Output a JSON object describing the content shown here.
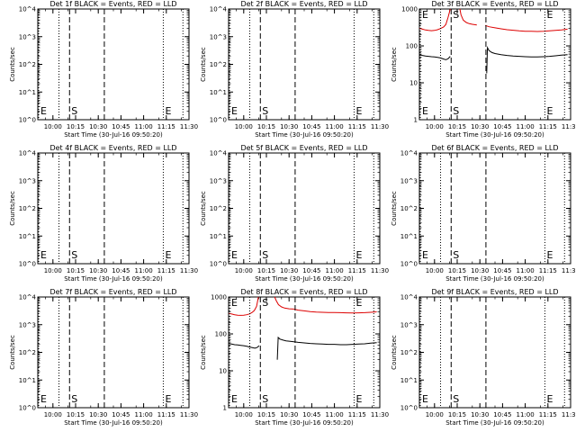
{
  "page": {
    "colors": {
      "background": "#ffffff",
      "events": "#000000",
      "lld": "#dd0000"
    }
  },
  "chart_data": [
    {
      "type": "line",
      "title": "Det 1f BLACK = Events, RED = LLD",
      "xlabel": "Start Time (30-Jul-16 09:50:20)",
      "ylabel": "Counts/sec",
      "xlim": [
        "09:50",
        "11:30"
      ],
      "x_ticks": [
        "10:00",
        "10:15",
        "10:30",
        "10:45",
        "11:00",
        "11:15",
        "11:30"
      ],
      "ylim": [
        1,
        10000
      ],
      "y_scale": "log",
      "y_ticks": [
        "10^0",
        "10^1",
        "10^2",
        "10^3",
        "10^4"
      ],
      "markers": [
        {
          "time": "09:50",
          "style": "dotted",
          "label": "E"
        },
        {
          "time": "10:04",
          "style": "dotted",
          "label": ""
        },
        {
          "time": "10:11",
          "style": "dashed",
          "label": "S"
        },
        {
          "time": "10:34",
          "style": "dashed",
          "label": ""
        },
        {
          "time": "11:13",
          "style": "dotted",
          "label": "E"
        },
        {
          "time": "11:26",
          "style": "dotted",
          "label": ""
        }
      ],
      "series": []
    },
    {
      "type": "line",
      "title": "Det 2f BLACK = Events, RED = LLD",
      "xlabel": "Start Time (30-Jul-16 09:50:20)",
      "ylabel": "Counts/sec",
      "xlim": [
        "09:50",
        "11:30"
      ],
      "x_ticks": [
        "10:00",
        "10:15",
        "10:30",
        "10:45",
        "11:00",
        "11:15",
        "11:30"
      ],
      "ylim": [
        1,
        10000
      ],
      "y_scale": "log",
      "y_ticks": [
        "10^0",
        "10^1",
        "10^2",
        "10^3",
        "10^4"
      ],
      "markers": [
        {
          "time": "09:50",
          "style": "dotted",
          "label": "E"
        },
        {
          "time": "10:04",
          "style": "dotted",
          "label": ""
        },
        {
          "time": "10:11",
          "style": "dashed",
          "label": "S"
        },
        {
          "time": "10:34",
          "style": "dashed",
          "label": ""
        },
        {
          "time": "11:13",
          "style": "dotted",
          "label": "E"
        },
        {
          "time": "11:26",
          "style": "dotted",
          "label": ""
        }
      ],
      "series": []
    },
    {
      "type": "line",
      "title": "Det 3f BLACK = Events, RED = LLD",
      "xlabel": "Start Time (30-Jul-16 09:50:20)",
      "ylabel": "Counts/sec",
      "xlim": [
        "09:50",
        "11:30"
      ],
      "x_ticks": [
        "10:00",
        "10:15",
        "10:30",
        "10:45",
        "11:00",
        "11:15",
        "11:30"
      ],
      "ylim": [
        1,
        1000
      ],
      "y_scale": "log",
      "y_ticks": [
        "1",
        "10",
        "100",
        "1000"
      ],
      "markers": [
        {
          "time": "09:50",
          "style": "dotted",
          "label": "E"
        },
        {
          "time": "10:04",
          "style": "dotted",
          "label": ""
        },
        {
          "time": "10:11",
          "style": "dashed",
          "label": "S"
        },
        {
          "time": "10:34",
          "style": "dashed",
          "label": ""
        },
        {
          "time": "11:13",
          "style": "dotted",
          "label": "E"
        },
        {
          "time": "11:26",
          "style": "dotted",
          "label": ""
        }
      ],
      "series": [
        {
          "color": "#dd0000",
          "segments": [
            {
              "x": [
                0,
                2,
                4,
                6,
                8,
                10,
                12,
                14,
                16,
                17.5,
                19,
                20.4
              ],
              "y": [
                300,
                285,
                270,
                262,
                258,
                262,
                275,
                295,
                325,
                380,
                600,
                1000
              ]
            },
            {
              "x": [
                26.8,
                27.5,
                29,
                31,
                33,
                35,
                38
              ],
              "y": [
                1000,
                700,
                500,
                430,
                400,
                385,
                370
              ]
            },
            {
              "x": [
                43.5,
                46,
                50,
                54,
                58,
                62,
                66,
                70,
                74,
                78,
                82,
                86,
                90,
                94,
                98
              ],
              "y": [
                360,
                330,
                310,
                290,
                275,
                265,
                255,
                250,
                248,
                246,
                248,
                255,
                262,
                272,
                285
              ]
            }
          ]
        },
        {
          "color": "#000000",
          "segments": [
            {
              "x": [
                0,
                2,
                4,
                6,
                8,
                10,
                12,
                14,
                16,
                17.5,
                19,
                20.4
              ],
              "y": [
                58,
                55,
                53,
                52,
                51,
                50,
                49,
                47,
                44,
                42,
                45,
                52
              ]
            },
            {
              "x": [
                44.5,
                45,
                46,
                48,
                50,
                54,
                58,
                62,
                66,
                70,
                74,
                78,
                82,
                86,
                90,
                94,
                98
              ],
              "y": [
                18,
                90,
                75,
                66,
                62,
                58,
                55,
                53,
                52,
                51,
                50,
                50,
                51,
                52,
                54,
                56,
                58
              ]
            }
          ]
        }
      ]
    },
    {
      "type": "line",
      "title": "Det 4f BLACK = Events, RED = LLD",
      "xlabel": "Start Time (30-Jul-16 09:50:20)",
      "ylabel": "Counts/sec",
      "xlim": [
        "09:50",
        "11:30"
      ],
      "x_ticks": [
        "10:00",
        "10:15",
        "10:30",
        "10:45",
        "11:00",
        "11:15",
        "11:30"
      ],
      "ylim": [
        1,
        10000
      ],
      "y_scale": "log",
      "y_ticks": [
        "10^0",
        "10^1",
        "10^2",
        "10^3",
        "10^4"
      ],
      "markers": [
        {
          "time": "09:50",
          "style": "dotted",
          "label": "E"
        },
        {
          "time": "10:04",
          "style": "dotted",
          "label": ""
        },
        {
          "time": "10:11",
          "style": "dashed",
          "label": "S"
        },
        {
          "time": "10:34",
          "style": "dashed",
          "label": ""
        },
        {
          "time": "11:13",
          "style": "dotted",
          "label": "E"
        },
        {
          "time": "11:26",
          "style": "dotted",
          "label": ""
        }
      ],
      "series": []
    },
    {
      "type": "line",
      "title": "Det 5f BLACK = Events, RED = LLD",
      "xlabel": "Start Time (30-Jul-16 09:50:20)",
      "ylabel": "Counts/sec",
      "xlim": [
        "09:50",
        "11:30"
      ],
      "x_ticks": [
        "10:00",
        "10:15",
        "10:30",
        "10:45",
        "11:00",
        "11:15",
        "11:30"
      ],
      "ylim": [
        1,
        10000
      ],
      "y_scale": "log",
      "y_ticks": [
        "10^0",
        "10^1",
        "10^2",
        "10^3",
        "10^4"
      ],
      "markers": [
        {
          "time": "09:50",
          "style": "dotted",
          "label": "E"
        },
        {
          "time": "10:04",
          "style": "dotted",
          "label": ""
        },
        {
          "time": "10:11",
          "style": "dashed",
          "label": "S"
        },
        {
          "time": "10:34",
          "style": "dashed",
          "label": ""
        },
        {
          "time": "11:13",
          "style": "dotted",
          "label": "E"
        },
        {
          "time": "11:26",
          "style": "dotted",
          "label": ""
        }
      ],
      "series": []
    },
    {
      "type": "line",
      "title": "Det 6f BLACK = Events, RED = LLD",
      "xlabel": "Start Time (30-Jul-16 09:50:20)",
      "ylabel": "Counts/sec",
      "xlim": [
        "09:50",
        "11:30"
      ],
      "x_ticks": [
        "10:00",
        "10:15",
        "10:30",
        "10:45",
        "11:00",
        "11:15",
        "11:30"
      ],
      "ylim": [
        1,
        10000
      ],
      "y_scale": "log",
      "y_ticks": [
        "10^0",
        "10^1",
        "10^2",
        "10^3",
        "10^4"
      ],
      "markers": [
        {
          "time": "09:50",
          "style": "dotted",
          "label": "E"
        },
        {
          "time": "10:04",
          "style": "dotted",
          "label": ""
        },
        {
          "time": "10:11",
          "style": "dashed",
          "label": "S"
        },
        {
          "time": "10:34",
          "style": "dashed",
          "label": ""
        },
        {
          "time": "11:13",
          "style": "dotted",
          "label": "E"
        },
        {
          "time": "11:26",
          "style": "dotted",
          "label": ""
        }
      ],
      "series": []
    },
    {
      "type": "line",
      "title": "Det 7f BLACK = Events, RED = LLD",
      "xlabel": "Start Time (30-Jul-16 09:50:20)",
      "ylabel": "Counts/sec",
      "xlim": [
        "09:50",
        "11:30"
      ],
      "x_ticks": [
        "10:00",
        "10:15",
        "10:30",
        "10:45",
        "11:00",
        "11:15",
        "11:30"
      ],
      "ylim": [
        1,
        10000
      ],
      "y_scale": "log",
      "y_ticks": [
        "10^0",
        "10^1",
        "10^2",
        "10^3",
        "10^4"
      ],
      "markers": [
        {
          "time": "09:50",
          "style": "dotted",
          "label": "E"
        },
        {
          "time": "10:04",
          "style": "dotted",
          "label": ""
        },
        {
          "time": "10:11",
          "style": "dashed",
          "label": "S"
        },
        {
          "time": "10:34",
          "style": "dashed",
          "label": ""
        },
        {
          "time": "11:13",
          "style": "dotted",
          "label": "E"
        },
        {
          "time": "11:26",
          "style": "dotted",
          "label": ""
        }
      ],
      "series": []
    },
    {
      "type": "line",
      "title": "Det 8f BLACK = Events, RED = LLD",
      "xlabel": "Start Time (30-Jul-16 09:50:20)",
      "ylabel": "Counts/sec",
      "xlim": [
        "09:50",
        "11:30"
      ],
      "x_ticks": [
        "10:00",
        "10:15",
        "10:30",
        "10:45",
        "11:00",
        "11:15",
        "11:30"
      ],
      "ylim": [
        1,
        1000
      ],
      "y_scale": "log",
      "y_ticks": [
        "1",
        "10",
        "100",
        "1000"
      ],
      "markers": [
        {
          "time": "09:50",
          "style": "dotted",
          "label": "E"
        },
        {
          "time": "10:04",
          "style": "dotted",
          "label": ""
        },
        {
          "time": "10:11",
          "style": "dashed",
          "label": "S"
        },
        {
          "time": "10:34",
          "style": "dashed",
          "label": ""
        },
        {
          "time": "11:13",
          "style": "dotted",
          "label": "E"
        },
        {
          "time": "11:26",
          "style": "dotted",
          "label": ""
        }
      ],
      "series": [
        {
          "color": "#dd0000",
          "segments": [
            {
              "x": [
                0,
                2,
                4,
                6,
                8,
                10,
                12,
                14,
                15.5,
                17,
                18.5,
                19.7
              ],
              "y": [
                360,
                345,
                330,
                322,
                318,
                320,
                330,
                350,
                380,
                430,
                560,
                1000
              ]
            },
            {
              "x": [
                30.5,
                31.5,
                33,
                35,
                37,
                40,
                43
              ],
              "y": [
                1000,
                800,
                620,
                540,
                500,
                480,
                470
              ]
            },
            {
              "x": [
                43,
                46,
                50,
                54,
                58,
                62,
                66,
                70,
                74,
                78,
                82,
                86,
                90,
                94,
                98
              ],
              "y": [
                470,
                440,
                420,
                400,
                390,
                385,
                380,
                378,
                376,
                372,
                370,
                372,
                376,
                385,
                395
              ]
            }
          ]
        },
        {
          "color": "#000000",
          "segments": [
            {
              "x": [
                0,
                2,
                4,
                6,
                8,
                10,
                12,
                14,
                16,
                17.5,
                19,
                20.2
              ],
              "y": [
                55,
                53,
                51,
                50,
                49,
                48,
                46,
                44,
                42,
                41,
                43,
                48
              ]
            },
            {
              "x": [
                32.2,
                32.8,
                34,
                36,
                38,
                42,
                46,
                50,
                54,
                58,
                62,
                66,
                70,
                74,
                78,
                82,
                86,
                90,
                94,
                98
              ],
              "y": [
                20,
                80,
                72,
                68,
                65,
                62,
                59,
                57,
                55,
                54,
                53,
                52,
                52,
                51,
                51,
                52,
                53,
                54,
                56,
                58
              ]
            }
          ]
        }
      ]
    },
    {
      "type": "line",
      "title": "Det 9f BLACK = Events, RED = LLD",
      "xlabel": "Start Time (30-Jul-16 09:50:20)",
      "ylabel": "Counts/sec",
      "xlim": [
        "09:50",
        "11:30"
      ],
      "x_ticks": [
        "10:00",
        "10:15",
        "10:30",
        "10:45",
        "11:00",
        "11:15",
        "11:30"
      ],
      "ylim": [
        1,
        10000
      ],
      "y_scale": "log",
      "y_ticks": [
        "10^0",
        "10^1",
        "10^2",
        "10^3",
        "10^4"
      ],
      "markers": [
        {
          "time": "09:50",
          "style": "dotted",
          "label": "E"
        },
        {
          "time": "10:04",
          "style": "dotted",
          "label": ""
        },
        {
          "time": "10:11",
          "style": "dashed",
          "label": "S"
        },
        {
          "time": "10:34",
          "style": "dashed",
          "label": ""
        },
        {
          "time": "11:13",
          "style": "dotted",
          "label": "E"
        },
        {
          "time": "11:26",
          "style": "dotted",
          "label": ""
        }
      ],
      "series": []
    }
  ]
}
